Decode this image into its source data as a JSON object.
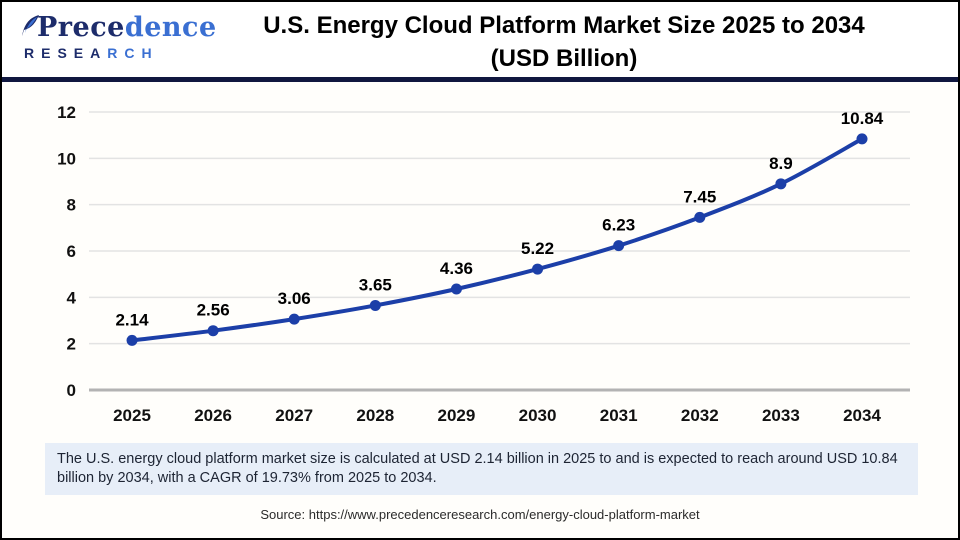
{
  "header": {
    "logo": {
      "name_part1": "Prece",
      "name_part2": "dence",
      "sub_part1": "RESEA",
      "sub_part2": "RCH"
    },
    "title_line1": "U.S. Energy Cloud Platform Market Size 2025 to 2034",
    "title_line2": "(USD Billion)"
  },
  "chart_data": {
    "type": "line",
    "title": "U.S. Energy Cloud Platform Market Size 2025 to 2034 (USD Billion)",
    "categories": [
      "2025",
      "2026",
      "2027",
      "2028",
      "2029",
      "2030",
      "2031",
      "2032",
      "2033",
      "2034"
    ],
    "values": [
      2.14,
      2.56,
      3.06,
      3.65,
      4.36,
      5.22,
      6.23,
      7.45,
      8.9,
      10.84
    ],
    "point_labels": [
      "2.14",
      "2.56",
      "3.06",
      "3.65",
      "4.36",
      "5.22",
      "6.23",
      "7.45",
      "8.9",
      "10.84"
    ],
    "xlabel": "",
    "ylabel": "",
    "ylim": [
      0,
      12
    ],
    "yticks": [
      0,
      2,
      4,
      6,
      8,
      10,
      12
    ],
    "grid": true,
    "legend": "none",
    "line_color": "#1c3fa8",
    "marker_color": "#1c3fa8",
    "gridline_color": "#e3e3e3",
    "axis_line_color": "#b3b3b3",
    "tick_label_color": "#111111",
    "data_label_color": "#000000"
  },
  "footer": {
    "summary": "The U.S. energy cloud platform market size is calculated at USD 2.14 billion in 2025 to and is expected to reach around USD 10.84 billion by 2034, with a CAGR of 19.73% from 2025 to 2034.",
    "source": "Source: https://www.precedenceresearch.com/energy-cloud-platform-market"
  },
  "colors": {
    "header_rule": "#10173f",
    "logo_dark": "#1d2c6b",
    "logo_light": "#3a6fd2",
    "summary_bg": "#e7eef8",
    "page_border": "#000000"
  }
}
